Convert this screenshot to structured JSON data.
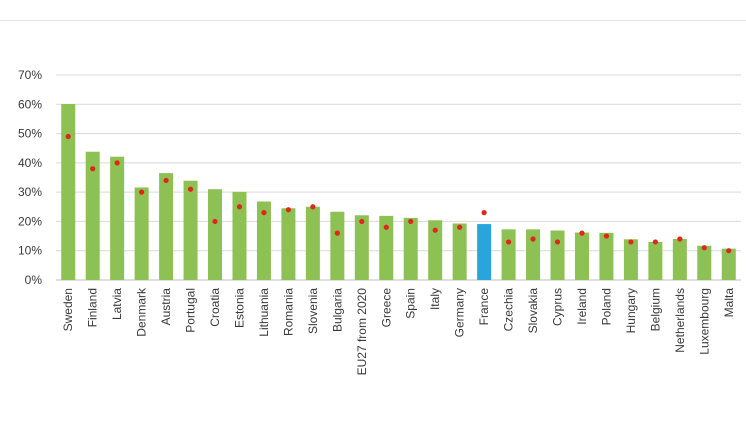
{
  "chart_data": {
    "type": "bar",
    "categories": [
      "Sweden",
      "Finland",
      "Latvia",
      "Denmark",
      "Austria",
      "Portugal",
      "Croatia",
      "Estonia",
      "Lithuania",
      "Romania",
      "Slovenia",
      "Bulgaria",
      "EU27 from 2020",
      "Greece",
      "Spain",
      "Italy",
      "Germany",
      "France",
      "Czechia",
      "Slovakia",
      "Cyprus",
      "Ireland",
      "Poland",
      "Hungary",
      "Belgium",
      "Netherlands",
      "Luxembourg",
      "Malta"
    ],
    "series": [
      {
        "type": "bar",
        "values": [
          60.1,
          43.8,
          42.1,
          31.6,
          36.5,
          33.9,
          31.0,
          30.1,
          26.8,
          24.5,
          25.0,
          23.3,
          22.1,
          21.9,
          21.2,
          20.4,
          19.3,
          19.1,
          17.3,
          17.3,
          16.9,
          16.2,
          16.1,
          13.9,
          13.0,
          14.0,
          11.7,
          10.7
        ],
        "color": "#8dc153",
        "highlight": {
          "category": "France",
          "color": "#2aa5dc"
        }
      },
      {
        "type": "scatter",
        "values": [
          49,
          38,
          40,
          30,
          34,
          31,
          20,
          25,
          23,
          24,
          25,
          16,
          20,
          18,
          20,
          17,
          18,
          23,
          13,
          14,
          13,
          16,
          15,
          13,
          13,
          14,
          11,
          10
        ],
        "color": "#e0251b"
      }
    ],
    "y_tick_labels": [
      "0%",
      "10%",
      "20%",
      "30%",
      "40%",
      "50%",
      "60%",
      "70%"
    ],
    "ylim": [
      0,
      70
    ],
    "title": "",
    "xlabel": "",
    "ylabel": "",
    "grid": true,
    "legend": "none"
  }
}
